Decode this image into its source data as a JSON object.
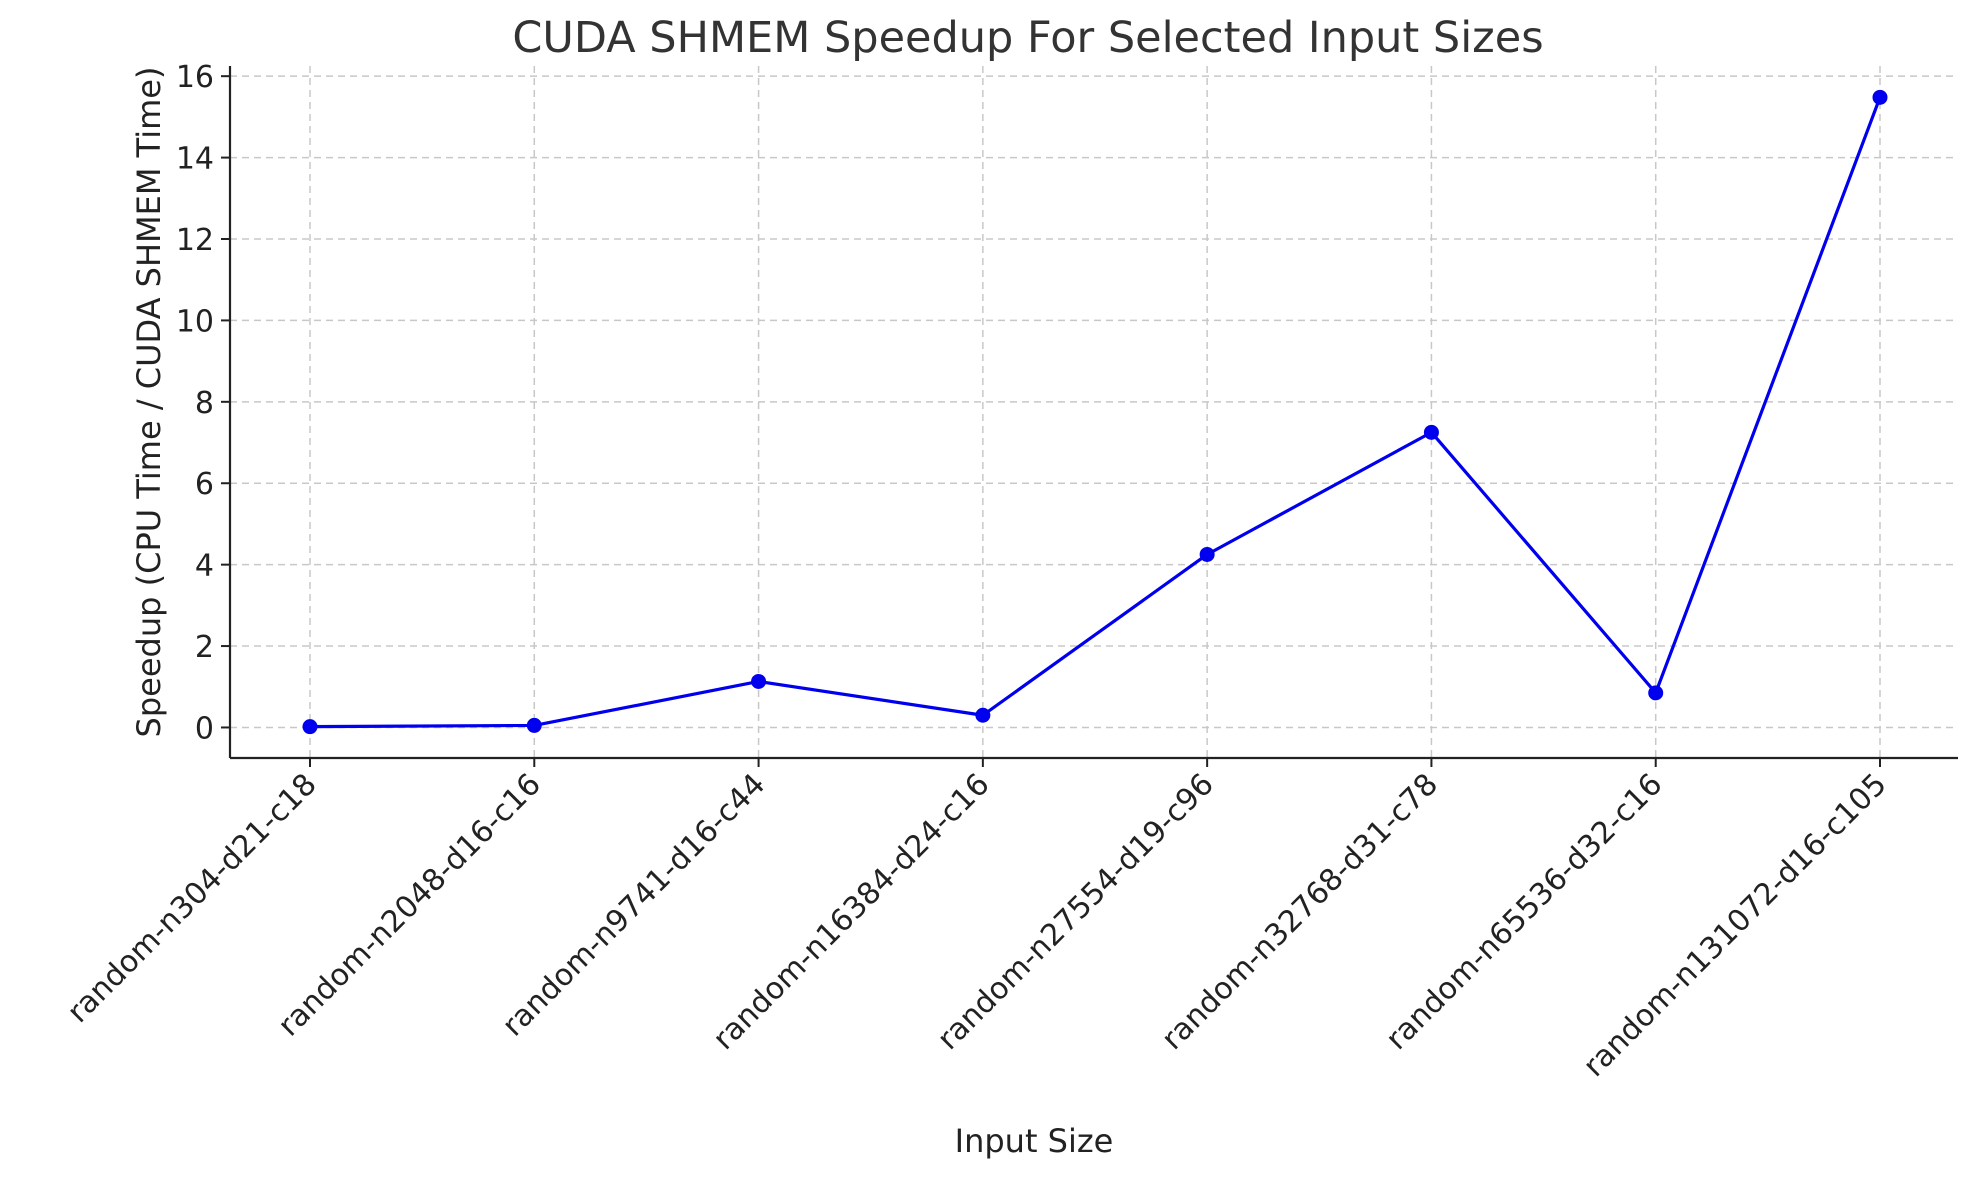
{
  "chart_data": {
    "type": "line",
    "title": "CUDA SHMEM Speedup For Selected Input Sizes",
    "xlabel": "Input Size",
    "ylabel": "Speedup (CPU Time / CUDA SHMEM Time)",
    "categories": [
      "random-n304-d21-c18",
      "random-n2048-d16-c16",
      "random-n9741-d16-c44",
      "random-n16384-d24-c16",
      "random-n27554-d19-c96",
      "random-n32768-d31-c78",
      "random-n65536-d32-c16",
      "random-n131072-d16-c105"
    ],
    "series": [
      {
        "values": [
          0.02,
          0.05,
          1.13,
          0.3,
          4.25,
          7.25,
          0.85,
          15.48
        ],
        "color": "#0000ee",
        "marker": "circle"
      }
    ],
    "yticks": [
      0,
      2,
      4,
      6,
      8,
      10,
      12,
      14,
      16
    ],
    "ylim": [
      -0.75,
      16.25
    ],
    "grid": true,
    "legend": "none"
  }
}
